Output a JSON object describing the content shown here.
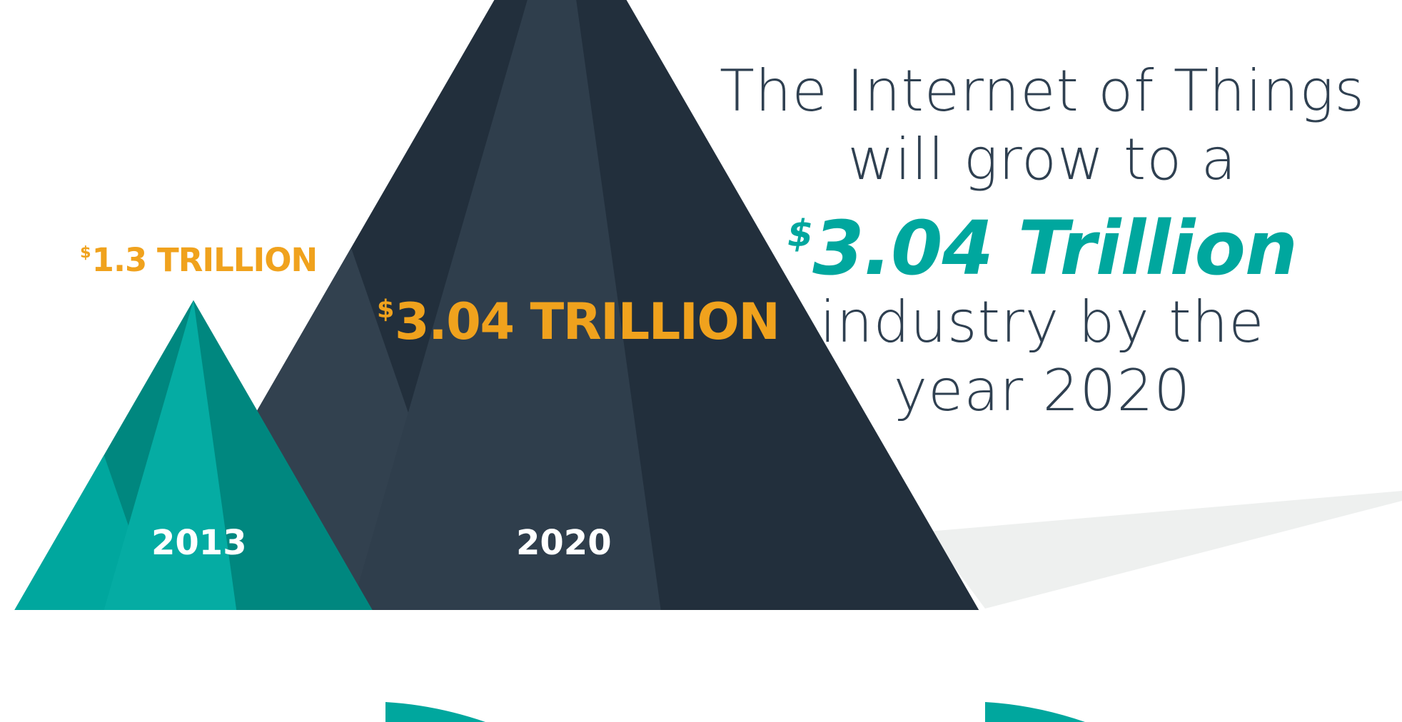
{
  "headline": {
    "line1": "The Internet of Things",
    "line2": "will grow to a",
    "accent_currency": "$",
    "accent_value": "3.04 Trillion",
    "line4": "industry by the",
    "line5": "year 2020"
  },
  "colors": {
    "teal": "#00a79e",
    "teal_dark": "#00877f",
    "navy": "#32414f",
    "navy_dark": "#222f3c",
    "orange": "#f0a21d",
    "text": "#2f4051",
    "grey_beam": "#eef0ef"
  },
  "chart_data": {
    "type": "area",
    "style": "triangle-pictogram",
    "categories": [
      "2013",
      "2020"
    ],
    "values": [
      1.3,
      3.04
    ],
    "value_labels": [
      {
        "currency": "$",
        "text": "1.3 TRILLION"
      },
      {
        "currency": "$",
        "text": "3.04 TRILLION"
      }
    ],
    "unit": "TRILLION",
    "currency": "$"
  }
}
